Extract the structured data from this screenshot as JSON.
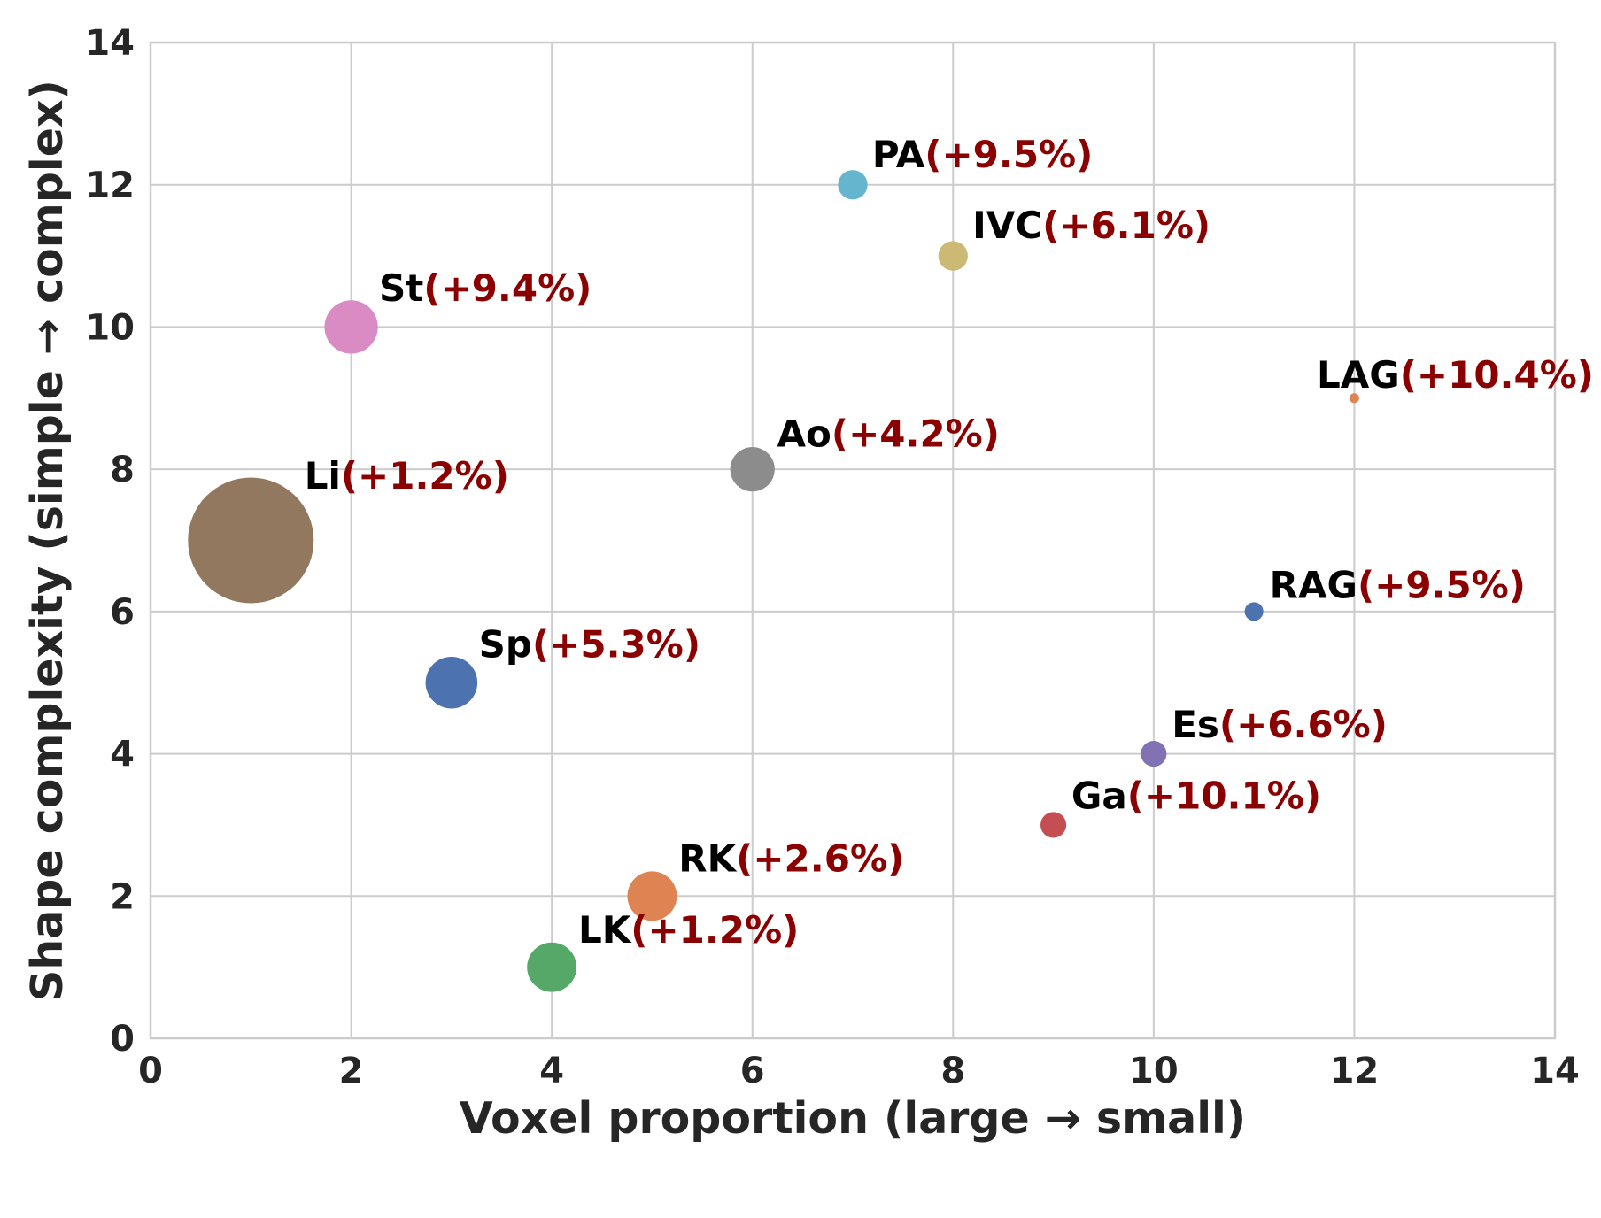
{
  "chart_data": {
    "type": "scatter",
    "title": "",
    "xlabel": "Voxel proportion (large → small)",
    "ylabel": "Shape complexity (simple → complex)",
    "xlim": [
      0,
      14
    ],
    "ylim": [
      0,
      14
    ],
    "xticks": [
      0,
      2,
      4,
      6,
      8,
      10,
      12,
      14
    ],
    "yticks": [
      0,
      2,
      4,
      6,
      8,
      10,
      12,
      14
    ],
    "grid": true,
    "points": [
      {
        "name": "Li",
        "delta": "(+1.2%)",
        "x": 1,
        "y": 7,
        "size_rel": 1.0,
        "color": "#937860"
      },
      {
        "name": "St",
        "delta": "(+9.4%)",
        "x": 2,
        "y": 10,
        "size_rel": 0.18,
        "color": "#da8bc3"
      },
      {
        "name": "Sp",
        "delta": "(+5.3%)",
        "x": 3,
        "y": 5,
        "size_rel": 0.17,
        "color": "#4c72b0"
      },
      {
        "name": "LK",
        "delta": "(+1.2%)",
        "x": 4,
        "y": 1,
        "size_rel": 0.155,
        "color": "#55a868"
      },
      {
        "name": "RK",
        "delta": "(+2.6%)",
        "x": 5,
        "y": 2,
        "size_rel": 0.155,
        "color": "#dd8452"
      },
      {
        "name": "Ao",
        "delta": "(+4.2%)",
        "x": 6,
        "y": 8,
        "size_rel": 0.125,
        "color": "#8c8c8c"
      },
      {
        "name": "PA",
        "delta": "(+9.5%)",
        "x": 7,
        "y": 12,
        "size_rel": 0.055,
        "color": "#64b5cd"
      },
      {
        "name": "IVC",
        "delta": "(+6.1%)",
        "x": 8,
        "y": 11,
        "size_rel": 0.055,
        "color": "#ccb974"
      },
      {
        "name": "Ga",
        "delta": "(+10.1%)",
        "x": 9,
        "y": 3,
        "size_rel": 0.042,
        "color": "#c44e52"
      },
      {
        "name": "Es",
        "delta": "(+6.6%)",
        "x": 10,
        "y": 4,
        "size_rel": 0.042,
        "color": "#8172b3"
      },
      {
        "name": "RAG",
        "delta": "(+9.5%)",
        "x": 11,
        "y": 6,
        "size_rel": 0.022,
        "color": "#4c72b0"
      },
      {
        "name": "LAG",
        "delta": "(+10.4%)",
        "x": 12,
        "y": 9,
        "size_rel": 0.006,
        "color": "#dd8452"
      }
    ]
  }
}
